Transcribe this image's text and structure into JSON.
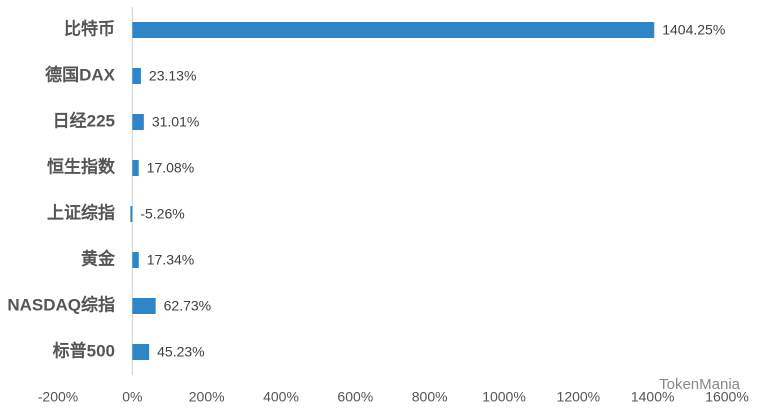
{
  "chart_data": {
    "type": "hbar",
    "categories": [
      "比特币",
      "德国DAX",
      "日经225",
      "恒生指数",
      "上证综指",
      "黄金",
      "NASDAQ综指",
      "标普500"
    ],
    "values": [
      1404.25,
      23.13,
      31.01,
      17.08,
      -5.26,
      17.34,
      62.73,
      45.23
    ],
    "value_labels": [
      "1404.25%",
      "23.13%",
      "31.01%",
      "17.08%",
      "-5.26%",
      "17.34%",
      "62.73%",
      "45.23%"
    ],
    "color": "#2e86c8",
    "xlim": [
      -200,
      1600
    ],
    "xticks": [
      {
        "value": -200,
        "label": "-200%"
      },
      {
        "value": 0,
        "label": "0%"
      },
      {
        "value": 200,
        "label": "200%"
      },
      {
        "value": 400,
        "label": "400%"
      },
      {
        "value": 600,
        "label": "600%"
      },
      {
        "value": 800,
        "label": "800%"
      },
      {
        "value": 1000,
        "label": "1000%"
      },
      {
        "value": 1200,
        "label": "1200%"
      },
      {
        "value": 1400,
        "label": "1400%"
      },
      {
        "value": 1600,
        "label": "1600%"
      }
    ],
    "grid": false,
    "annotation": "TokenMania"
  }
}
